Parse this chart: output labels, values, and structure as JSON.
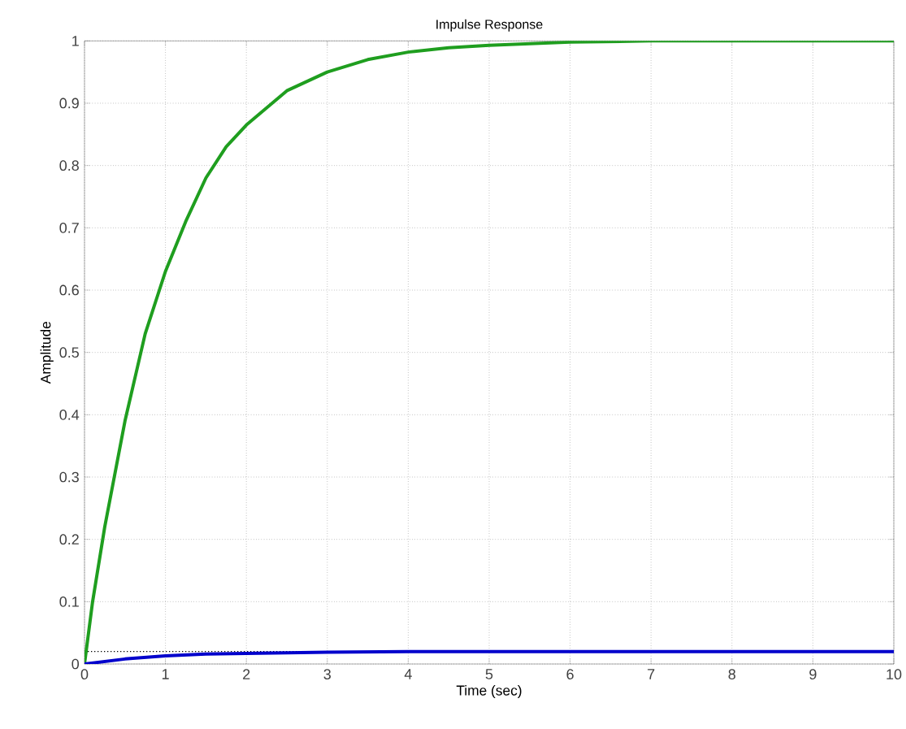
{
  "chart_data": {
    "type": "line",
    "title": "Impulse Response",
    "xlabel": "Time (sec)",
    "ylabel": "Amplitude",
    "xlim": [
      0,
      10
    ],
    "ylim": [
      0,
      1
    ],
    "xticks": [
      0,
      1,
      2,
      3,
      4,
      5,
      6,
      7,
      8,
      9,
      10
    ],
    "yticks": [
      0,
      0.1,
      0.2,
      0.3,
      0.4,
      0.5,
      0.6,
      0.7,
      0.8,
      0.9,
      1
    ],
    "grid": true,
    "line_style": "solid",
    "ref_lines": [
      {
        "axis": "y",
        "value": 0.02,
        "line_style": "dotted",
        "color": "#000000"
      }
    ],
    "series": [
      {
        "color": "#1f9e1f",
        "x": [
          0,
          0.1,
          0.25,
          0.5,
          0.75,
          1,
          1.25,
          1.5,
          1.75,
          2,
          2.5,
          3,
          3.5,
          4,
          4.5,
          5,
          6,
          7,
          8,
          9,
          10
        ],
        "values": [
          0,
          0.1,
          0.22,
          0.39,
          0.53,
          0.63,
          0.71,
          0.78,
          0.83,
          0.865,
          0.92,
          0.95,
          0.97,
          0.982,
          0.989,
          0.993,
          0.998,
          1,
          1,
          1,
          1
        ]
      },
      {
        "color": "#0000cc",
        "x": [
          0,
          0.5,
          1,
          1.5,
          2,
          3,
          4,
          5,
          6,
          8,
          10
        ],
        "values": [
          0,
          0.008,
          0.013,
          0.016,
          0.017,
          0.019,
          0.02,
          0.02,
          0.02,
          0.02,
          0.02
        ]
      }
    ]
  }
}
